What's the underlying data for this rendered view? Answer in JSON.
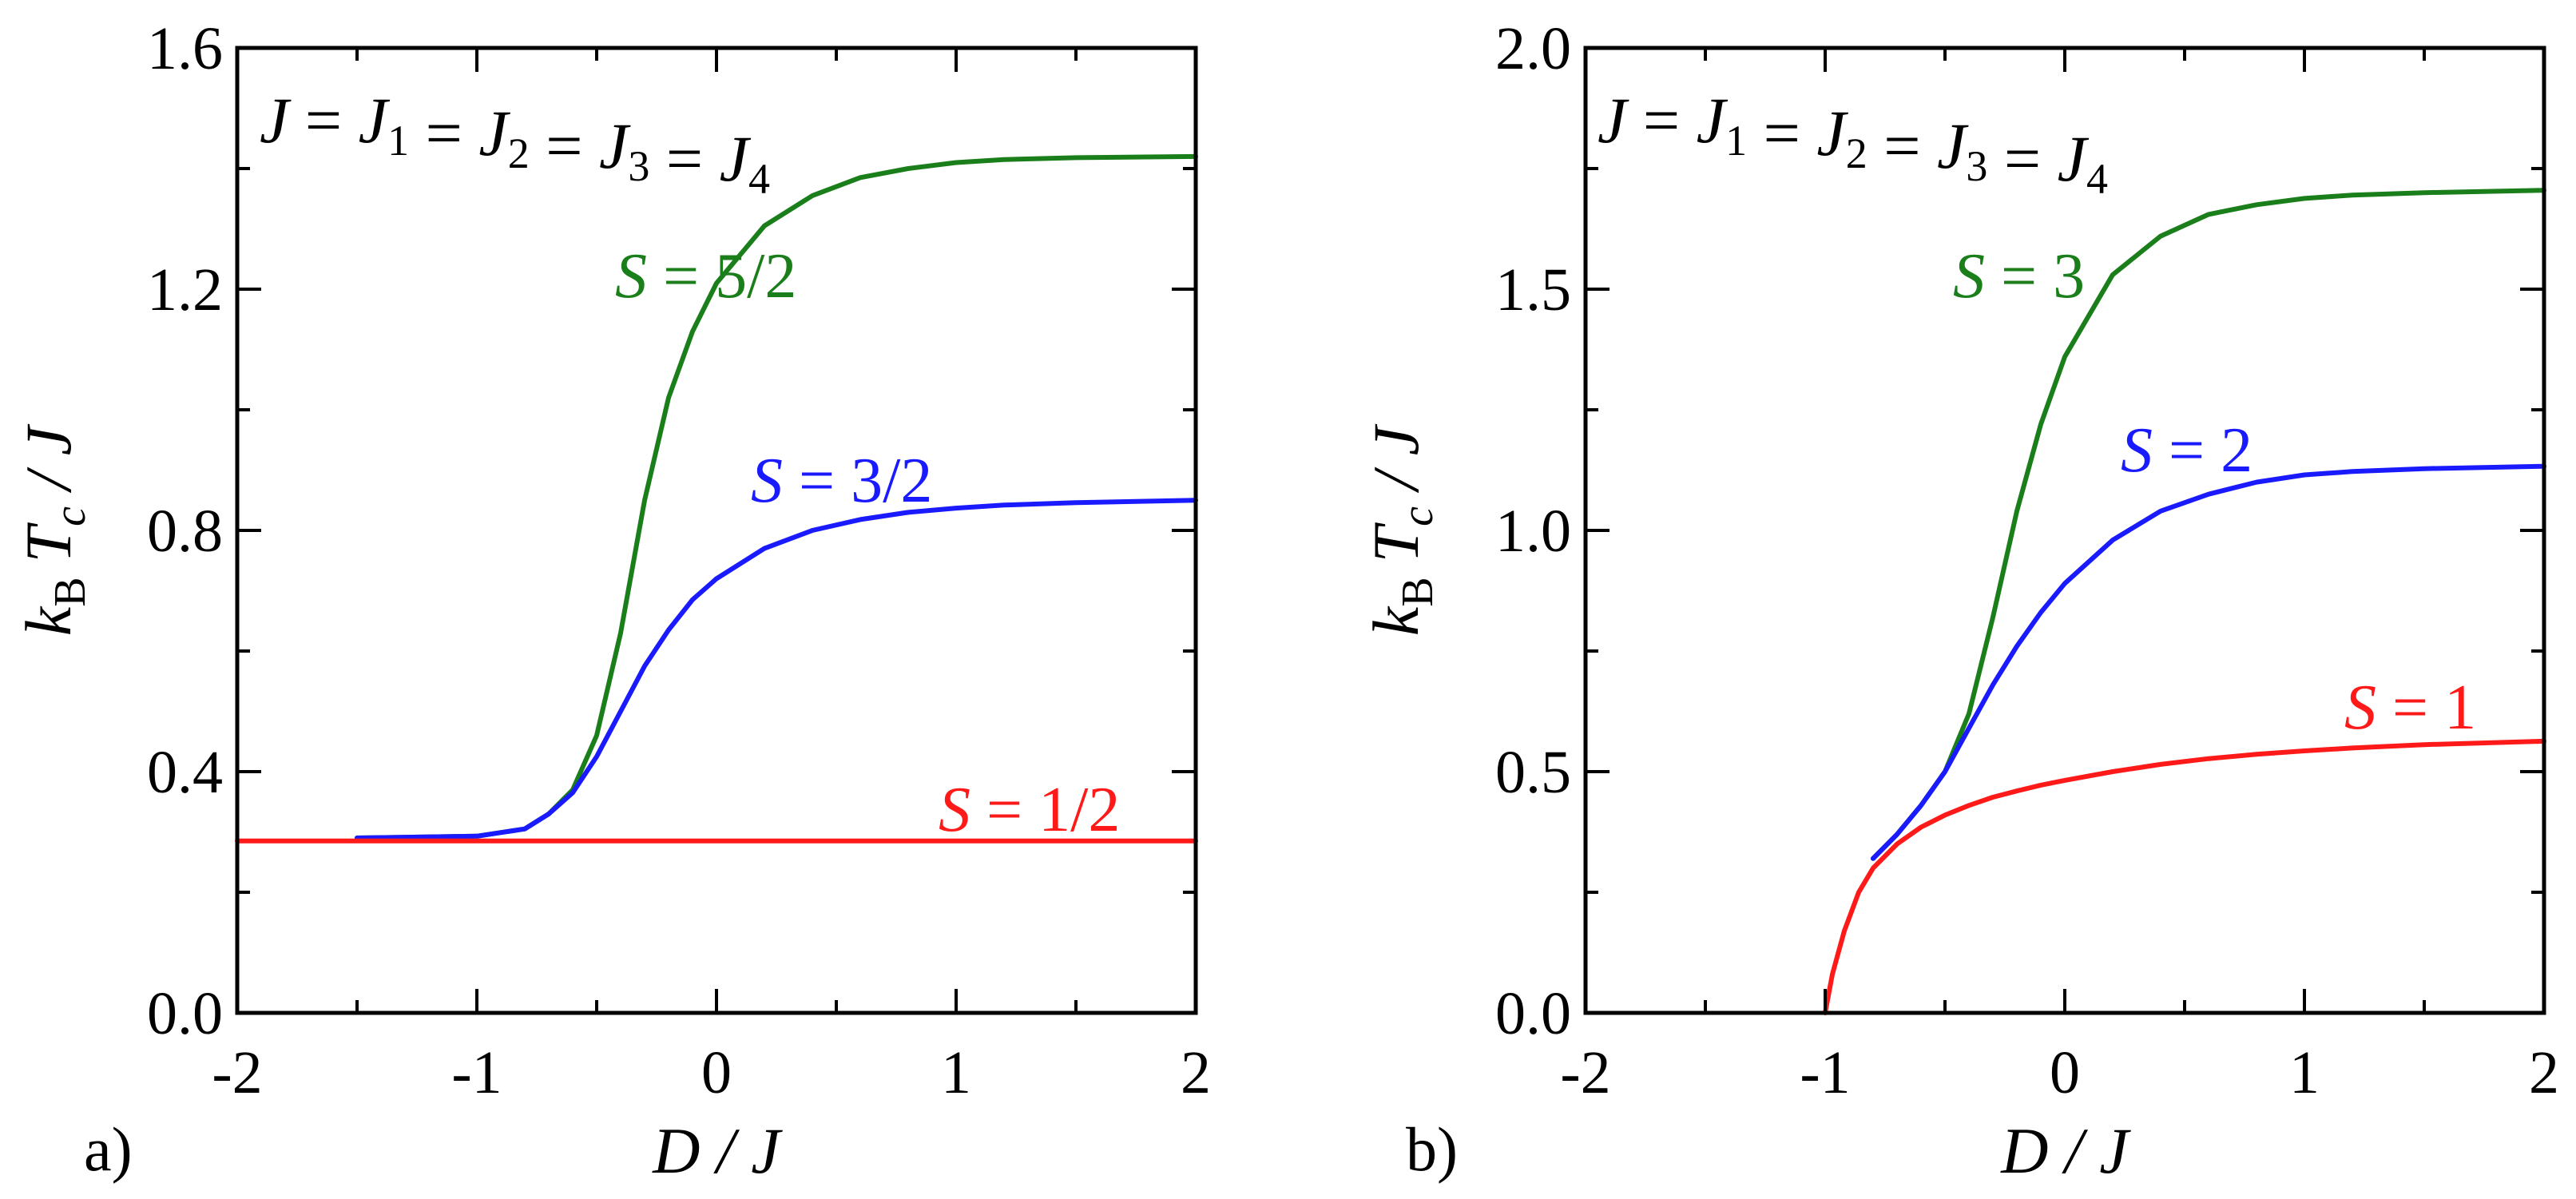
{
  "chart_data": [
    {
      "type": "line",
      "panel_label": "a)",
      "annotation": "J = J1 = J2 = J3 = J4",
      "xlabel": "D / J",
      "ylabel": "kB Tc / J",
      "xlim": [
        -2,
        2
      ],
      "ylim": [
        0,
        1.6
      ],
      "x_ticks": [
        -2,
        -1,
        0,
        1,
        2
      ],
      "x_tick_labels": [
        "-2",
        "-1",
        "0",
        "1",
        "2"
      ],
      "y_ticks": [
        0,
        0.4,
        0.8,
        1.2,
        1.6
      ],
      "y_tick_labels": [
        "0.0",
        "0.4",
        "0.8",
        "1.2",
        "1.6"
      ],
      "grid": false,
      "series": [
        {
          "name": "S = 5/2",
          "label_italic": "S",
          "label_rest": " = 5/2",
          "color": "#1a7f1a",
          "x": [
            -1.5,
            -1.0,
            -0.8,
            -0.7,
            -0.6,
            -0.5,
            -0.4,
            -0.3,
            -0.2,
            -0.1,
            0.0,
            0.2,
            0.4,
            0.6,
            0.8,
            1.0,
            1.2,
            1.5,
            2.0
          ],
          "y": [
            0.29,
            0.293,
            0.305,
            0.33,
            0.37,
            0.46,
            0.63,
            0.85,
            1.02,
            1.13,
            1.21,
            1.305,
            1.355,
            1.385,
            1.4,
            1.41,
            1.415,
            1.418,
            1.42
          ]
        },
        {
          "name": "S = 3/2",
          "label_italic": "S",
          "label_rest": " = 3/2",
          "color": "#1a1aff",
          "x": [
            -1.5,
            -1.0,
            -0.8,
            -0.7,
            -0.6,
            -0.5,
            -0.4,
            -0.3,
            -0.2,
            -0.1,
            0.0,
            0.2,
            0.4,
            0.6,
            0.8,
            1.0,
            1.2,
            1.5,
            2.0
          ],
          "y": [
            0.29,
            0.293,
            0.305,
            0.33,
            0.365,
            0.425,
            0.5,
            0.575,
            0.635,
            0.685,
            0.72,
            0.77,
            0.8,
            0.818,
            0.83,
            0.837,
            0.842,
            0.846,
            0.85
          ]
        },
        {
          "name": "S = 1/2",
          "label_italic": "S",
          "label_rest": " = 1/2",
          "color": "#ff1a1a",
          "x": [
            -2.0,
            2.0
          ],
          "y": [
            0.285,
            0.285
          ]
        }
      ]
    },
    {
      "type": "line",
      "panel_label": "b)",
      "annotation": "J = J1 = J2 = J3 = J4",
      "xlabel": "D / J",
      "ylabel": "kB Tc / J",
      "xlim": [
        -2,
        2
      ],
      "ylim": [
        0,
        2.0
      ],
      "x_ticks": [
        -2,
        -1,
        0,
        1,
        2
      ],
      "x_tick_labels": [
        "-2",
        "-1",
        "0",
        "1",
        "2"
      ],
      "y_ticks": [
        0,
        0.5,
        1.0,
        1.5,
        2.0
      ],
      "y_tick_labels": [
        "0.0",
        "0.5",
        "1.0",
        "1.5",
        "2.0"
      ],
      "grid": false,
      "series": [
        {
          "name": "S = 3",
          "label_italic": "S",
          "label_rest": " = 3",
          "color": "#1a7f1a",
          "x": [
            -0.8,
            -0.7,
            -0.6,
            -0.5,
            -0.4,
            -0.3,
            -0.2,
            -0.1,
            0.0,
            0.2,
            0.4,
            0.6,
            0.8,
            1.0,
            1.2,
            1.5,
            2.0
          ],
          "y": [
            0.32,
            0.37,
            0.43,
            0.5,
            0.62,
            0.82,
            1.04,
            1.22,
            1.36,
            1.53,
            1.61,
            1.655,
            1.675,
            1.688,
            1.695,
            1.7,
            1.705
          ]
        },
        {
          "name": "S = 2",
          "label_italic": "S",
          "label_rest": " = 2",
          "color": "#1a1aff",
          "x": [
            -0.8,
            -0.7,
            -0.6,
            -0.5,
            -0.4,
            -0.3,
            -0.2,
            -0.1,
            0.0,
            0.2,
            0.4,
            0.6,
            0.8,
            1.0,
            1.2,
            1.5,
            2.0
          ],
          "y": [
            0.32,
            0.37,
            0.43,
            0.5,
            0.59,
            0.68,
            0.76,
            0.83,
            0.89,
            0.98,
            1.04,
            1.075,
            1.1,
            1.115,
            1.122,
            1.128,
            1.133
          ]
        },
        {
          "name": "S = 1",
          "label_italic": "S",
          "label_rest": " = 1",
          "color": "#ff1a1a",
          "x": [
            -1.0,
            -0.97,
            -0.92,
            -0.86,
            -0.8,
            -0.7,
            -0.6,
            -0.5,
            -0.4,
            -0.3,
            -0.2,
            -0.1,
            0.0,
            0.2,
            0.4,
            0.6,
            0.8,
            1.0,
            1.2,
            1.5,
            2.0
          ],
          "y": [
            0.0,
            0.08,
            0.17,
            0.25,
            0.3,
            0.35,
            0.385,
            0.41,
            0.43,
            0.447,
            0.46,
            0.472,
            0.482,
            0.5,
            0.515,
            0.527,
            0.536,
            0.543,
            0.549,
            0.556,
            0.563
          ]
        }
      ]
    }
  ]
}
